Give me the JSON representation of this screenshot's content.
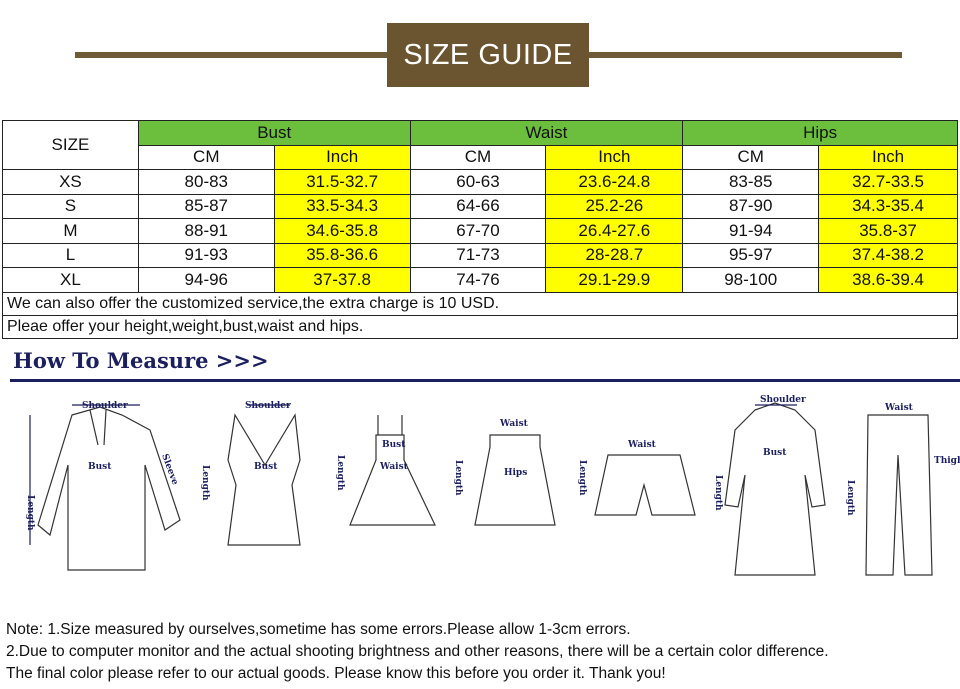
{
  "title": "SIZE GUIDE",
  "table": {
    "size_header": "SIZE",
    "groups": [
      "Bust",
      "Waist",
      "Hips"
    ],
    "units": [
      "CM",
      "Inch"
    ],
    "rows": [
      [
        "XS",
        "80-83",
        "31.5-32.7",
        "60-63",
        "23.6-24.8",
        "83-85",
        "32.7-33.5"
      ],
      [
        "S",
        "85-87",
        "33.5-34.3",
        "64-66",
        "25.2-26",
        "87-90",
        "34.3-35.4"
      ],
      [
        "M",
        "88-91",
        "34.6-35.8",
        "67-70",
        "26.4-27.6",
        "91-94",
        "35.8-37"
      ],
      [
        "L",
        "91-93",
        "35.8-36.6",
        "71-73",
        "28-28.7",
        "95-97",
        "37.4-38.2"
      ],
      [
        "XL",
        "94-96",
        "37-37.8",
        "74-76",
        "29.1-29.9",
        "98-100",
        "38.6-39.4"
      ]
    ],
    "note1": "We can also offer the customized service,the extra charge is 10 USD.",
    "note2": "Pleae offer your height,weight,bust,waist and hips."
  },
  "colors": {
    "brown": "#6b5430",
    "green": "#6cbf3c",
    "yellow": "#ffff00",
    "navy": "#1b1f5e"
  },
  "how_to_measure": "How To Measure >>>",
  "labels": {
    "shoulder": "Shoulder",
    "bust": "Bust",
    "sleeve": "Sleeve",
    "length": "Length",
    "waist": "Waist",
    "hips": "Hips",
    "thigh": "Thigh"
  },
  "notes": [
    "Note: 1.Size measured by ourselves,sometime has some errors.Please allow 1-3cm errors.",
    "2.Due to computer monitor and the actual shooting brightness and other reasons, there will be a certain color difference.",
    "The final color please refer to our actual goods. Please know this before you order it. Thank you!"
  ]
}
